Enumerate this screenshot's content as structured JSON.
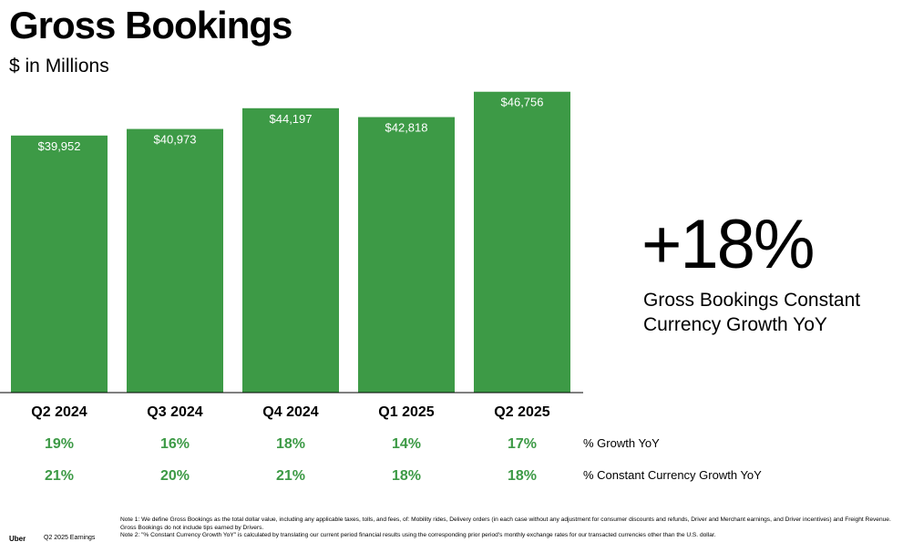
{
  "title": "Gross Bookings",
  "subtitle": "$ in Millions",
  "chart_data": {
    "type": "bar",
    "categories": [
      "Q2 2024",
      "Q3 2024",
      "Q4 2024",
      "Q1 2025",
      "Q2 2025"
    ],
    "values": [
      39952,
      40973,
      44197,
      42818,
      46756
    ],
    "value_labels": [
      "$39,952",
      "$40,973",
      "$44,197",
      "$42,818",
      "$46,756"
    ],
    "bar_color": "#3d9a46",
    "ylim": [
      0,
      47000
    ],
    "grid": false,
    "rows": [
      {
        "label": "% Growth YoY",
        "values": [
          "19%",
          "16%",
          "18%",
          "14%",
          "17%"
        ]
      },
      {
        "label": "% Constant Currency Growth YoY",
        "values": [
          "21%",
          "20%",
          "21%",
          "18%",
          "18%"
        ]
      }
    ]
  },
  "highlight": {
    "value": "+18%",
    "label": "Gross Bookings Constant Currency Growth YoY"
  },
  "footer": {
    "brand": "Uber",
    "period": "Q2 2025 Earnings",
    "note1": "Note 1: We define Gross Bookings as the total dollar value, including any applicable taxes, tolls, and fees, of: Mobility rides, Delivery orders (in each case without any adjustment for consumer discounts and refunds, Driver and Merchant earnings, and Driver incentives) and Freight Revenue. Gross Bookings do not include tips earned by Drivers.",
    "note2": "Note 2: \"% Constant Currency Growth YoY\" is calculated by translating our current period financial results using the corresponding prior period's monthly exchange rates for our transacted currencies other than the U.S. dollar."
  }
}
